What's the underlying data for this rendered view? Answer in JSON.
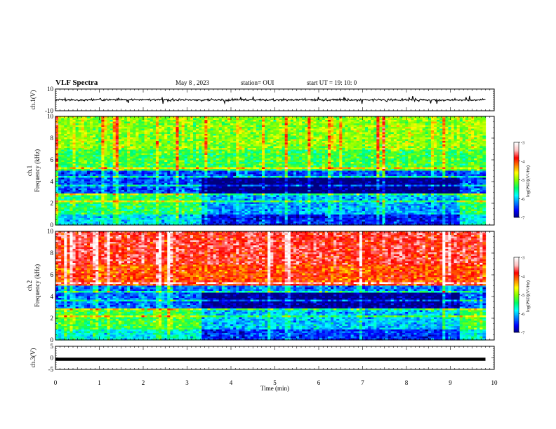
{
  "header": {
    "title": "VLF Spectra",
    "date": "May 8 , 2023",
    "station": "station= OUI",
    "start_ut": "start UT =   19: 10: 0"
  },
  "colors": {
    "background": "#ffffff",
    "trace": "#000000",
    "colormap": [
      "#00007f",
      "#0000ff",
      "#0080ff",
      "#00ffff",
      "#00ff66",
      "#80ff00",
      "#ffff00",
      "#ff8000",
      "#ff0000",
      "#ffbfbf",
      "#ffffff"
    ]
  },
  "chart_data": [
    {
      "type": "line",
      "name": "ch1-waveform",
      "ylabel": "ch.1(V)",
      "ylim": [
        -10,
        10
      ],
      "ytick_labels": [
        "10",
        "-10"
      ],
      "xlim": [
        0,
        10
      ],
      "approx_level_v": 0,
      "approx_amplitude_v": 2,
      "grid": false
    },
    {
      "type": "heatmap",
      "name": "ch1-spectrogram",
      "ylabel": "ch.1\nFrequency (kHz)",
      "ylim": [
        0,
        10
      ],
      "ytick_labels": [
        "0",
        "2",
        "4",
        "6",
        "8",
        "10"
      ],
      "xlim": [
        0,
        10
      ],
      "data_extent_min": 9.8,
      "colorbar": {
        "label": "log(PSD)(V²/Hz)",
        "range": [
          -7,
          -3
        ],
        "tick_labels": [
          "-3",
          "-4",
          "-5",
          "-6",
          "-7"
        ]
      },
      "dominant_level_hi_freq": -5,
      "dominant_level_lo_freq": -6.3
    },
    {
      "type": "heatmap",
      "name": "ch2-spectrogram",
      "ylabel": "ch.2\nFrequency (kHz)",
      "ylim": [
        0,
        10
      ],
      "ytick_labels": [
        "0",
        "2",
        "4",
        "6",
        "8",
        "10"
      ],
      "xlim": [
        0,
        10
      ],
      "data_extent_min": 9.8,
      "colorbar": {
        "label": "log(PSD)(V²/Hz)",
        "range": [
          -7,
          -3
        ],
        "tick_labels": [
          "-3",
          "-4",
          "-5",
          "-6",
          "-7"
        ]
      },
      "dominant_level_hi_freq": -3.8,
      "dominant_level_lo_freq": -6.2
    },
    {
      "type": "line",
      "name": "ch3-waveform",
      "ylabel": "ch.3(V)",
      "ylim": [
        -5,
        5
      ],
      "ytick_labels": [
        "5",
        "0",
        "-5"
      ],
      "xlim": [
        0,
        10
      ],
      "approx_level_v": -0.6
    }
  ],
  "xaxis": {
    "label": "Time (min)",
    "tick_labels": [
      "0",
      "1",
      "2",
      "3",
      "4",
      "5",
      "6",
      "7",
      "8",
      "9",
      "10"
    ]
  }
}
